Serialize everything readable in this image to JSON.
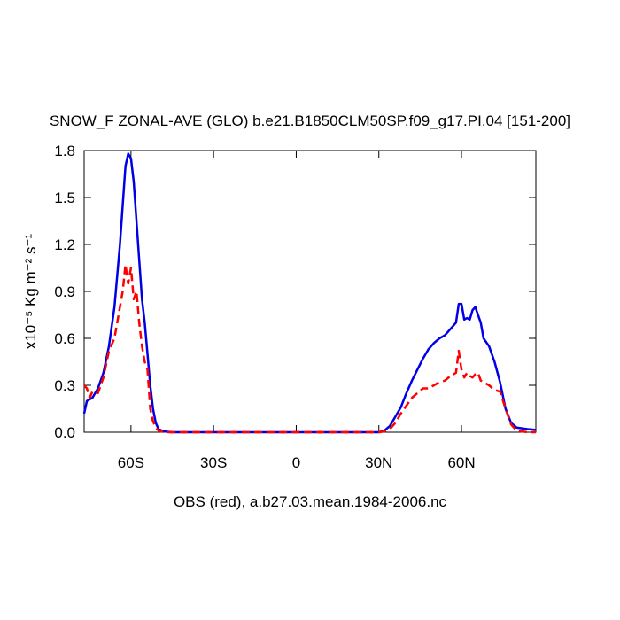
{
  "chart_data": {
    "type": "line",
    "title": "SNOW_F ZONAL-AVE (GLO) b.e21.B1850CLM50SP.f09_g17.PI.04 [151-200]",
    "ylabel": "x10⁻⁵ Kg m⁻² s⁻¹",
    "xlabel": "OBS (red), a.b27.03.mean.1984-2006.nc",
    "x": [
      -77,
      -76,
      -75,
      -74,
      -72,
      -70,
      -68,
      -66,
      -64,
      -63,
      -62,
      -61,
      -60,
      -59,
      -58,
      -57,
      -56,
      -55,
      -54,
      -53,
      -52,
      -51,
      -50,
      -48,
      -45,
      -30,
      0,
      30,
      32,
      34,
      36,
      38,
      40,
      42,
      44,
      46,
      48,
      50,
      52,
      54,
      56,
      58,
      59,
      60,
      61,
      62,
      63,
      64,
      65,
      66,
      67,
      68,
      70,
      72,
      74,
      76,
      78,
      80,
      84,
      87
    ],
    "series": [
      {
        "color": "#0000e6",
        "dash": false,
        "values": [
          0.12,
          0.2,
          0.21,
          0.22,
          0.28,
          0.38,
          0.55,
          0.8,
          1.2,
          1.45,
          1.7,
          1.78,
          1.75,
          1.6,
          1.35,
          1.1,
          0.85,
          0.7,
          0.5,
          0.3,
          0.15,
          0.06,
          0.02,
          0.005,
          0,
          0,
          0,
          0,
          0.01,
          0.04,
          0.1,
          0.16,
          0.25,
          0.33,
          0.4,
          0.47,
          0.53,
          0.57,
          0.6,
          0.62,
          0.66,
          0.7,
          0.82,
          0.82,
          0.72,
          0.73,
          0.72,
          0.78,
          0.8,
          0.75,
          0.7,
          0.6,
          0.55,
          0.45,
          0.32,
          0.15,
          0.06,
          0.03,
          0.02,
          0.015
        ]
      },
      {
        "color": "#ff0000",
        "dash": true,
        "values": [
          0.3,
          0.28,
          0.22,
          0.26,
          0.25,
          0.35,
          0.52,
          0.6,
          0.8,
          0.9,
          1.07,
          0.95,
          1.05,
          0.85,
          0.9,
          0.7,
          0.55,
          0.45,
          0.4,
          0.15,
          0.07,
          0.03,
          0.01,
          0,
          0,
          0,
          0,
          0,
          0.005,
          0.02,
          0.06,
          0.12,
          0.17,
          0.22,
          0.25,
          0.28,
          0.28,
          0.3,
          0.32,
          0.33,
          0.36,
          0.38,
          0.52,
          0.4,
          0.35,
          0.38,
          0.36,
          0.35,
          0.37,
          0.38,
          0.33,
          0.32,
          0.3,
          0.27,
          0.26,
          0.15,
          0.05,
          0.01,
          0,
          0
        ]
      }
    ],
    "xlim": [
      -77,
      87
    ],
    "xticks": [
      {
        "value": -60,
        "label": "60S"
      },
      {
        "value": -30,
        "label": "30S"
      },
      0,
      {
        "value": 30,
        "label": "30N"
      },
      {
        "value": 60,
        "label": "60N"
      }
    ],
    "ylim": [
      0,
      1.8
    ],
    "yticks": [
      {
        "value": 0,
        "label": "0.0"
      },
      0.3,
      0.6,
      0.9,
      1.2,
      1.5,
      1.8
    ]
  }
}
